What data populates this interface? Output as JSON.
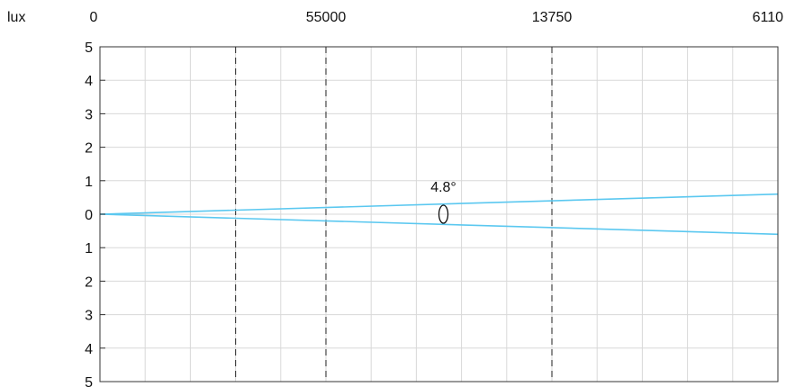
{
  "chart_data": {
    "type": "line",
    "unit_label": "lux",
    "top_labels": [
      {
        "x": 0,
        "text": "0"
      },
      {
        "x": 5,
        "text": "55000"
      },
      {
        "x": 10,
        "text": "13750"
      },
      {
        "x": 15,
        "text": "6110"
      }
    ],
    "xlim": [
      0,
      15
    ],
    "ylim": [
      -5,
      5
    ],
    "y_ticks": [
      {
        "value": 5,
        "label": "5"
      },
      {
        "value": 4,
        "label": "4"
      },
      {
        "value": 3,
        "label": "3"
      },
      {
        "value": 2,
        "label": "2"
      },
      {
        "value": 1,
        "label": "1"
      },
      {
        "value": 0,
        "label": "0"
      },
      {
        "value": -1,
        "label": "1"
      },
      {
        "value": -2,
        "label": "2"
      },
      {
        "value": -3,
        "label": "3"
      },
      {
        "value": -4,
        "label": "4"
      },
      {
        "value": -5,
        "label": "5"
      }
    ],
    "grid": true,
    "dashed_x": [
      3,
      5,
      10
    ],
    "series": [
      {
        "x": [
          0,
          15
        ],
        "y": [
          0,
          0.6
        ],
        "color": "#5bc8f0"
      },
      {
        "x": [
          0,
          15
        ],
        "y": [
          0,
          -0.6
        ],
        "color": "#5bc8f0"
      }
    ],
    "annotation": {
      "text": "4.8°",
      "x": 7.6,
      "y": 0
    }
  }
}
